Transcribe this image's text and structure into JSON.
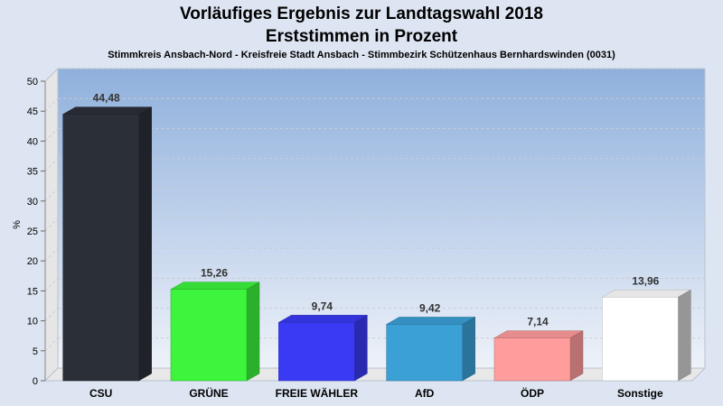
{
  "chart_data": {
    "type": "bar",
    "title": "Vorläufiges Ergebnis zur Landtagswahl 2018",
    "title_line2": "Erststimmen in Prozent",
    "subtitle": "Stimmkreis Ansbach-Nord - Kreisfreie Stadt Ansbach - Stimmbezirk Schützenhaus Bernhardswinden (0031)",
    "ylabel": "%",
    "ylim": [
      0,
      50
    ],
    "yticks": [
      "0",
      "5",
      "10",
      "15",
      "20",
      "25",
      "30",
      "35",
      "40",
      "45",
      "50"
    ],
    "categories": [
      "CSU",
      "GRÜNE",
      "FREIE WÄHLER",
      "AfD",
      "ÖDP",
      "Sonstige"
    ],
    "values": [
      44.48,
      15.26,
      9.74,
      9.42,
      7.14,
      13.96
    ],
    "value_labels": [
      "44,48",
      "15,26",
      "9,74",
      "9,42",
      "7,14",
      "13,96"
    ],
    "colors": [
      "#2b2f38",
      "#3cf53c",
      "#3a3af5",
      "#3ba0d6",
      "#ff9c9c",
      "#ffffff"
    ],
    "grid": true,
    "legend": "none"
  }
}
